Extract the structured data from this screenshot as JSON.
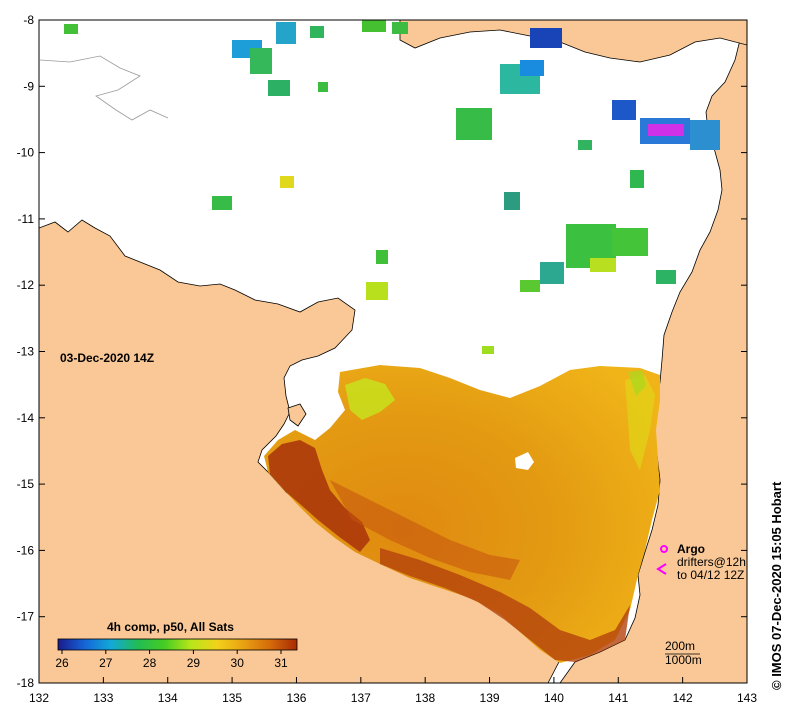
{
  "map": {
    "timestamp": "03-Dec-2020 14Z",
    "colorbar_title": "4h comp, p50, All Sats",
    "colorbar_ticks": [
      "26",
      "27",
      "28",
      "29",
      "30",
      "31"
    ],
    "colorbar_stops": [
      "#1a1a8c",
      "#1565d8",
      "#12a9d8",
      "#22bb55",
      "#44cc22",
      "#b8e61a",
      "#f2d21a",
      "#e8a012",
      "#d46a0a",
      "#a82a05"
    ],
    "lon_ticks": [
      "132",
      "133",
      "134",
      "135",
      "136",
      "137",
      "138",
      "139",
      "140",
      "141",
      "142",
      "143"
    ],
    "lat_ticks": [
      "-8",
      "-9",
      "-10",
      "-11",
      "-12",
      "-13",
      "-14",
      "-15",
      "-16",
      "-17",
      "-18"
    ],
    "legend": {
      "argo": "Argo",
      "drifters_line1": "drifters@12h",
      "drifters_line2": "to 04/12 12Z",
      "contour_200": "200m",
      "contour_1000": "1000m"
    },
    "credit": "© IMOS 07-Dec-2020 15:05 Hobart",
    "colors": {
      "land": "#f9c896",
      "background": "#ffffff",
      "argo_marker": "#ff00ff"
    }
  }
}
